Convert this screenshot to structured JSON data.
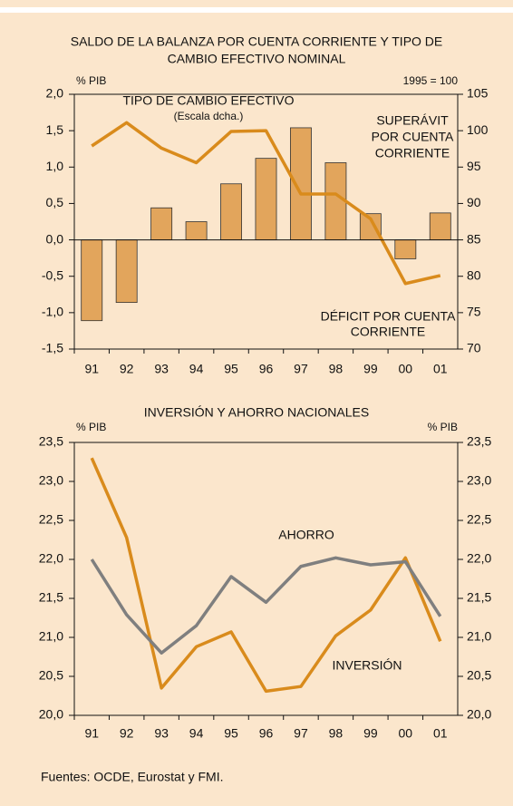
{
  "chart_data": [
    {
      "type": "bar_line",
      "title": [
        "SALDO DE LA BALANZA POR CUENTA CORRIENTE Y TIPO DE",
        "CAMBIO EFECTIVO NOMINAL"
      ],
      "ylabel": "% PIB",
      "y2label": "1995 = 100",
      "categories": [
        "91",
        "92",
        "93",
        "94",
        "95",
        "96",
        "97",
        "98",
        "99",
        "00",
        "01"
      ],
      "series": [
        {
          "type": "bar",
          "color": "#e2a55c",
          "values": [
            -1.11,
            -0.86,
            0.44,
            0.25,
            0.77,
            1.12,
            1.54,
            1.06,
            0.36,
            -0.26,
            0.37
          ]
        },
        {
          "type": "line",
          "name": "TIPO DE CAMBIO EFECTIVO",
          "color": "#d98b1c",
          "axis": "y2",
          "values": [
            97.9,
            101.1,
            97.6,
            95.6,
            99.9,
            100,
            91.3,
            91.3,
            87.9,
            79.0,
            80.1
          ]
        }
      ],
      "annotations": [
        "(Escala dcha.)",
        "SUPERÁVIT",
        "POR CUENTA",
        "CORRIENTE",
        "DÉFICIT POR CUENTA",
        "CORRIENTE"
      ],
      "ylim": [
        -1.5,
        2.0
      ],
      "yticks": [
        {
          "value": -1.5,
          "label": "-1,5"
        },
        {
          "value": -1,
          "label": "-1,0"
        },
        {
          "value": -0.5,
          "label": "-0,5"
        },
        {
          "value": 0,
          "label": "0,0"
        },
        {
          "value": 0.5,
          "label": "0,5"
        },
        {
          "value": 1,
          "label": "1,0"
        },
        {
          "value": 1.5,
          "label": "1,5"
        },
        {
          "value": 2,
          "label": "2,0"
        }
      ],
      "y2lim": [
        70,
        105
      ],
      "y2ticks": [
        70,
        75,
        80,
        85,
        90,
        95,
        100,
        105
      ]
    },
    {
      "type": "line",
      "title": [
        "INVERSIÓN Y AHORRO NACIONALES"
      ],
      "ylabel": "% PIB",
      "y2label": "% PIB",
      "categories": [
        "91",
        "92",
        "93",
        "94",
        "95",
        "96",
        "97",
        "98",
        "99",
        "00",
        "01"
      ],
      "series": [
        {
          "name": "INVERSIÓN",
          "color": "#d98b1c",
          "values": [
            23.3,
            22.28,
            20.35,
            20.88,
            21.07,
            20.31,
            20.37,
            21.02,
            21.35,
            22.02,
            20.95
          ]
        },
        {
          "name": "AHORRO",
          "color": "#7f7f7f",
          "values": [
            22.0,
            21.29,
            20.8,
            21.15,
            21.78,
            21.45,
            21.91,
            22.02,
            21.93,
            21.97,
            21.27
          ]
        }
      ],
      "ylim": [
        20.0,
        23.5
      ],
      "yticks": [
        {
          "value": 20,
          "label": "20,0"
        },
        {
          "value": 20.5,
          "label": "20,5"
        },
        {
          "value": 21,
          "label": "21,0"
        },
        {
          "value": 21.5,
          "label": "21,5"
        },
        {
          "value": 22,
          "label": "22,0"
        },
        {
          "value": 22.5,
          "label": "22,5"
        },
        {
          "value": 23,
          "label": "23,0"
        },
        {
          "value": 23.5,
          "label": "23,5"
        }
      ],
      "y2lim": [
        20.0,
        23.5
      ],
      "y2ticks": [
        {
          "value": 20,
          "label": "20,0"
        },
        {
          "value": 20.5,
          "label": "20,5"
        },
        {
          "value": 21,
          "label": "21,0"
        },
        {
          "value": 21.5,
          "label": "21,5"
        },
        {
          "value": 22,
          "label": "22,0"
        },
        {
          "value": 22.5,
          "label": "22,5"
        },
        {
          "value": 23,
          "label": "23,0"
        },
        {
          "value": 23.5,
          "label": "23,5"
        }
      ]
    }
  ],
  "source": "Fuentes: OCDE, Eurostat y FMI."
}
